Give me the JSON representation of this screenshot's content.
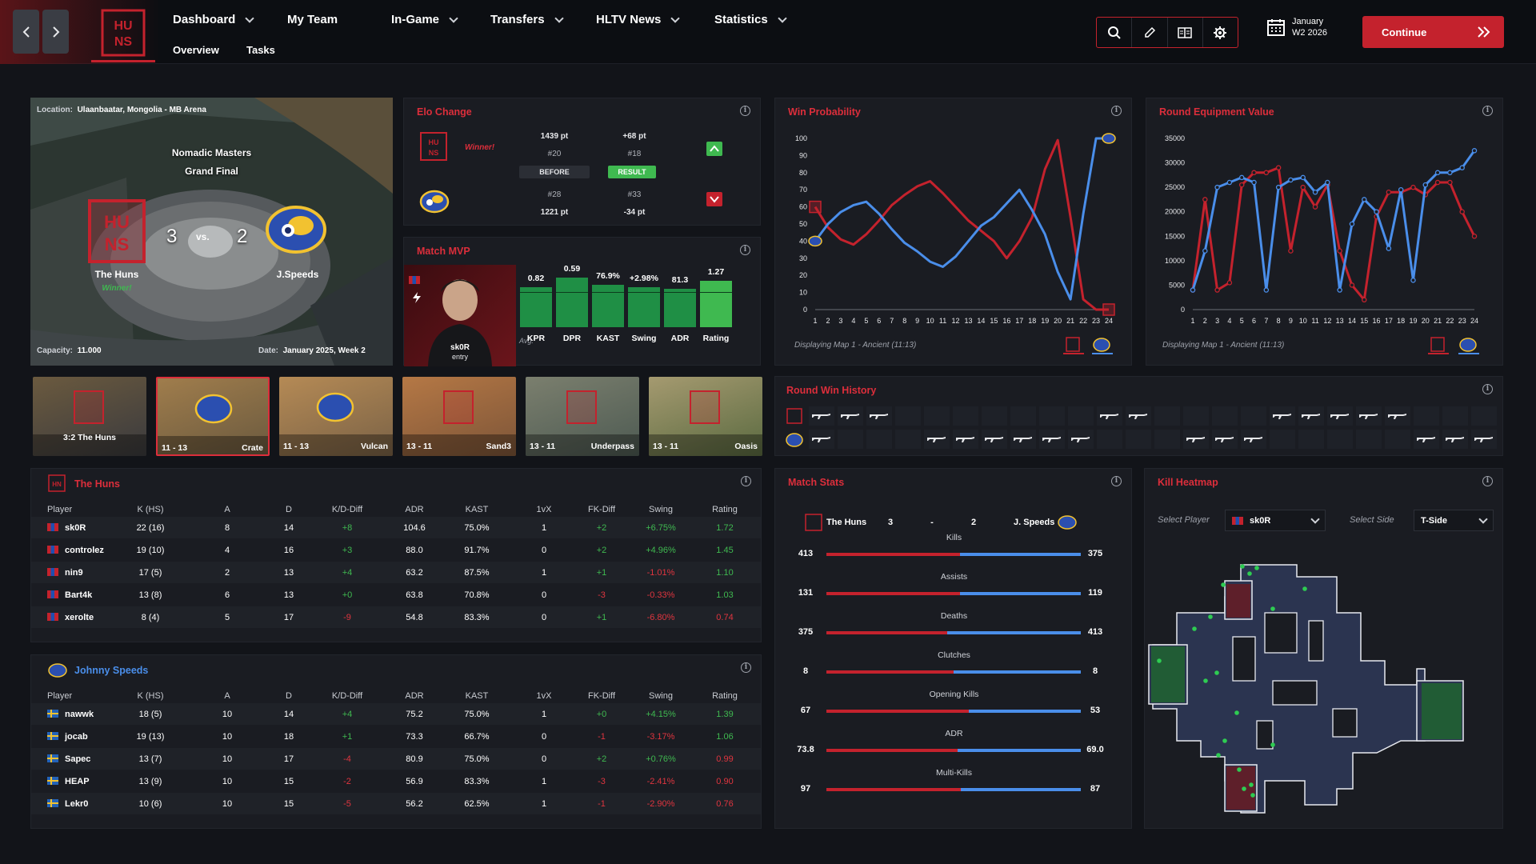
{
  "nav": {
    "menu": [
      {
        "label": "Dashboard",
        "dropdown": true
      },
      {
        "label": "My Team",
        "dropdown": false
      },
      {
        "label": "In-Game",
        "dropdown": true
      },
      {
        "label": "Transfers",
        "dropdown": true
      },
      {
        "label": "HLTV News",
        "dropdown": true
      },
      {
        "label": "Statistics",
        "dropdown": true
      }
    ],
    "sub": [
      "Overview",
      "Tasks"
    ],
    "date_line1": "January",
    "date_line2": "W2 2026",
    "continue_label": "Continue",
    "tools": [
      "search-icon",
      "pencil-icon",
      "compare-icon",
      "gear-icon"
    ]
  },
  "venue": {
    "location_label": "Location:",
    "location": "Ulaanbaatar, Mongolia - MB Arena",
    "event": "Nomadic Masters",
    "stage": "Grand Final",
    "home_score": "3",
    "vs": "vs.",
    "away_score": "2",
    "home": "The Huns",
    "away": "J.Speeds",
    "winner": "Winner!",
    "capacity_label": "Capacity:",
    "capacity": "11.000",
    "date_label": "Date:",
    "date": "January 2025, Week 2"
  },
  "elo": {
    "title": "Elo Change",
    "winner": "Winner!",
    "home_pts": "1439 pt",
    "home_change": "+68 pt",
    "home_rank_before": "#20",
    "home_rank_after": "#18",
    "before_label": "BEFORE",
    "result_label": "RESULT",
    "away_rank_before": "#28",
    "away_rank_after": "#33",
    "away_pts": "1221 pt",
    "away_change": "-34 pt"
  },
  "mvp": {
    "title": "Match MVP",
    "player": "sk0R",
    "role": "entry",
    "avg": "Avg.",
    "stats": [
      {
        "label": "KPR",
        "value": "0.82",
        "level": 0.62,
        "avg": 0.55
      },
      {
        "label": "DPR",
        "value": "0.59",
        "level": 0.78,
        "avg": 0.55
      },
      {
        "label": "KAST",
        "value": "76.9%",
        "level": 0.66,
        "avg": 0.55
      },
      {
        "label": "Swing",
        "value": "+2.98%",
        "level": 0.62,
        "avg": 0.55
      },
      {
        "label": "ADR",
        "value": "81.3",
        "level": 0.6,
        "avg": 0.55
      },
      {
        "label": "Rating",
        "value": "1.27",
        "level": 0.72,
        "avg": 0.55
      }
    ]
  },
  "winprob": {
    "title": "Win Probability",
    "footer": "Displaying Map 1 - Ancient (11:13)",
    "chart_data": {
      "type": "line",
      "x": [
        1,
        2,
        3,
        4,
        5,
        6,
        7,
        8,
        9,
        10,
        11,
        12,
        13,
        14,
        15,
        16,
        17,
        18,
        19,
        20,
        21,
        22,
        23,
        24
      ],
      "ylim": [
        0,
        100
      ],
      "yticks": [
        0,
        10,
        20,
        30,
        40,
        50,
        60,
        70,
        80,
        90,
        100
      ],
      "series": [
        {
          "color": "#c4222d",
          "values": [
            60,
            48,
            41,
            38,
            44,
            52,
            61,
            67,
            72,
            75,
            68,
            60,
            52,
            46,
            40,
            30,
            40,
            54,
            82,
            99,
            54,
            6,
            0,
            0
          ]
        },
        {
          "color": "#4a8eea",
          "values": [
            40,
            50,
            57,
            61,
            63,
            56,
            47,
            39,
            34,
            28,
            25,
            31,
            40,
            49,
            54,
            62,
            70,
            58,
            44,
            22,
            6,
            56,
            100,
            100
          ]
        }
      ]
    }
  },
  "equip": {
    "title": "Round Equipment Value",
    "footer": "Displaying Map 1 - Ancient (11:13)",
    "chart_data": {
      "type": "line",
      "x": [
        1,
        2,
        3,
        4,
        5,
        6,
        7,
        8,
        9,
        10,
        11,
        12,
        13,
        14,
        15,
        16,
        17,
        18,
        19,
        20,
        21,
        22,
        23,
        24
      ],
      "ylim": [
        0,
        35000
      ],
      "yticks": [
        0,
        5000,
        10000,
        15000,
        20000,
        25000,
        30000,
        35000
      ],
      "series": [
        {
          "color": "#c4222d",
          "values": [
            4000,
            22500,
            4000,
            5500,
            25500,
            28000,
            28000,
            29000,
            12000,
            25000,
            21000,
            25500,
            12000,
            5000,
            2000,
            19000,
            24000,
            24000,
            25000,
            23500,
            26000,
            26000,
            20000,
            15000
          ]
        },
        {
          "color": "#4a8eea",
          "values": [
            4000,
            12000,
            25000,
            26000,
            27000,
            26000,
            4000,
            25000,
            26500,
            27000,
            24000,
            26000,
            4000,
            17500,
            22500,
            20000,
            12500,
            24500,
            6000,
            25500,
            28000,
            28000,
            29000,
            32500
          ]
        }
      ]
    }
  },
  "maps": [
    {
      "score": "3:2 The Huns",
      "name": ""
    },
    {
      "score": "11 - 13",
      "name": "Crate"
    },
    {
      "score": "11 - 13",
      "name": "Vulcan"
    },
    {
      "score": "13 - 11",
      "name": "Sand3"
    },
    {
      "score": "13 - 11",
      "name": "Underpass"
    },
    {
      "score": "13 - 11",
      "name": "Oasis"
    }
  ],
  "roundwin": {
    "title": "Round Win History",
    "home": [
      1,
      1,
      1,
      0,
      0,
      0,
      0,
      0,
      0,
      0,
      1,
      1,
      0,
      0,
      0,
      0,
      1,
      1,
      1,
      1,
      1,
      0,
      0,
      0
    ],
    "away": [
      1,
      0,
      0,
      0,
      1,
      1,
      1,
      1,
      1,
      1,
      0,
      0,
      0,
      1,
      1,
      1,
      0,
      0,
      0,
      0,
      0,
      1,
      1,
      1
    ]
  },
  "huns": {
    "name": "The Huns",
    "headers": [
      "Player",
      "K (HS)",
      "A",
      "D",
      "K/D-Diff",
      "ADR",
      "KAST",
      "1vX",
      "FK-Diff",
      "Swing",
      "Rating"
    ],
    "rows": [
      [
        "sk0R",
        "22 (16)",
        "8",
        "14",
        "+8",
        "104.6",
        "75.0%",
        "1",
        "+2",
        "+6.75%",
        "1.72"
      ],
      [
        "controlez",
        "19 (10)",
        "4",
        "16",
        "+3",
        "88.0",
        "91.7%",
        "0",
        "+2",
        "+4.96%",
        "1.45"
      ],
      [
        "nin9",
        "17 (5)",
        "2",
        "13",
        "+4",
        "63.2",
        "87.5%",
        "1",
        "+1",
        "-1.01%",
        "1.10"
      ],
      [
        "Bart4k",
        "13 (8)",
        "6",
        "13",
        "+0",
        "63.8",
        "70.8%",
        "0",
        "-3",
        "-0.33%",
        "1.03"
      ],
      [
        "xerolte",
        "8 (4)",
        "5",
        "17",
        "-9",
        "54.8",
        "83.3%",
        "0",
        "+1",
        "-6.80%",
        "0.74"
      ]
    ]
  },
  "speeds": {
    "name": "Johnny Speeds",
    "headers": [
      "Player",
      "K (HS)",
      "A",
      "D",
      "K/D-Diff",
      "ADR",
      "KAST",
      "1vX",
      "FK-Diff",
      "Swing",
      "Rating"
    ],
    "rows": [
      [
        "nawwk",
        "18 (5)",
        "10",
        "14",
        "+4",
        "75.2",
        "75.0%",
        "1",
        "+0",
        "+4.15%",
        "1.39"
      ],
      [
        "jocab",
        "19 (13)",
        "10",
        "18",
        "+1",
        "73.3",
        "66.7%",
        "0",
        "-1",
        "-3.17%",
        "1.06"
      ],
      [
        "Sapec",
        "13 (7)",
        "10",
        "17",
        "-4",
        "80.9",
        "75.0%",
        "0",
        "+2",
        "+0.76%",
        "0.99"
      ],
      [
        "HEAP",
        "13 (9)",
        "10",
        "15",
        "-2",
        "56.9",
        "83.3%",
        "1",
        "-3",
        "-2.41%",
        "0.90"
      ],
      [
        "Lekr0",
        "10 (6)",
        "10",
        "15",
        "-5",
        "56.2",
        "62.5%",
        "1",
        "-1",
        "-2.90%",
        "0.76"
      ]
    ]
  },
  "matchstats": {
    "title": "Match Stats",
    "home": "The Huns",
    "home_score": "3",
    "dash": "-",
    "away_score": "2",
    "away": "J. Speeds",
    "rows": [
      {
        "label": "Kills",
        "home": "413",
        "away": "375",
        "h": 413,
        "a": 375
      },
      {
        "label": "Assists",
        "home": "131",
        "away": "119",
        "h": 131,
        "a": 119
      },
      {
        "label": "Deaths",
        "home": "375",
        "away": "413",
        "h": 375,
        "a": 413
      },
      {
        "label": "Clutches",
        "home": "8",
        "away": "8",
        "h": 8,
        "a": 8
      },
      {
        "label": "Opening Kills",
        "home": "67",
        "away": "53",
        "h": 67,
        "a": 53
      },
      {
        "label": "ADR",
        "home": "73.8",
        "away": "69.0",
        "h": 73.8,
        "a": 69.0
      },
      {
        "label": "Multi-Kills",
        "home": "97",
        "away": "87",
        "h": 97,
        "a": 87
      }
    ]
  },
  "heatmap": {
    "title": "Kill Heatmap",
    "select_player_label": "Select Player",
    "player": "sk0R",
    "select_side_label": "Select Side",
    "side": "T-Side"
  }
}
